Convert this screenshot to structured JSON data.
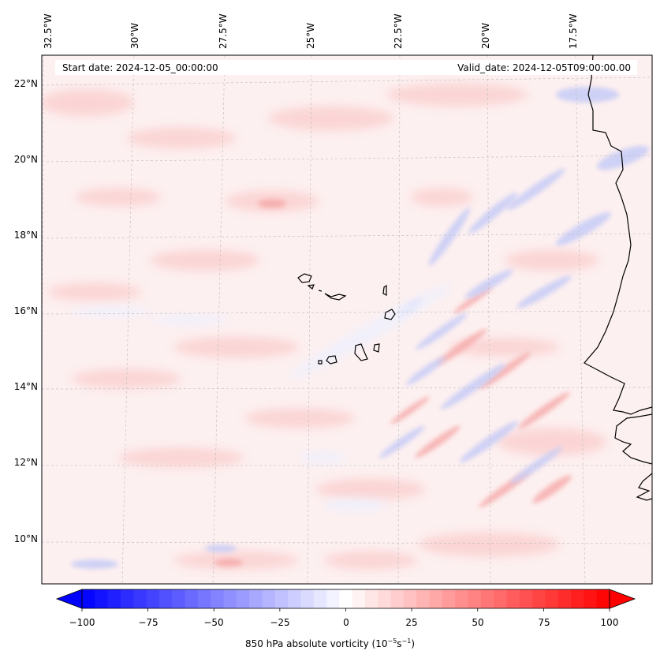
{
  "map": {
    "projection": "regional lat/lon map, West Africa / Cape Verde",
    "start_date": "Start date: 2024-12-05_00:00:00",
    "valid_date": "Valid_date: 2024-12-05T09:00:00.00",
    "gridlines": "dashed light grey",
    "coastline_color": "#000000"
  },
  "axes": {
    "longitude_labels": [
      "32.5°W",
      "30°W",
      "27.5°W",
      "25°W",
      "22.5°W",
      "20°W",
      "17.5°W"
    ],
    "latitude_labels": [
      "22°N",
      "20°N",
      "18°N",
      "16°N",
      "14°N",
      "12°N",
      "10°N"
    ]
  },
  "colorbar": {
    "label_main": "850 hPa absolute vorticity (10",
    "label_exp1": "−5",
    "label_mid": "s",
    "label_exp2": "−1",
    "label_end": ")",
    "ticks": [
      "−100",
      "−75",
      "−50",
      "−25",
      "0",
      "25",
      "50",
      "75",
      "100"
    ],
    "min": -100,
    "max": 100,
    "levels": 41,
    "colormap": "bwr",
    "color_low": "#0000ff",
    "color_mid": "#ffffff",
    "color_high": "#ff0000",
    "extend": "both"
  }
}
